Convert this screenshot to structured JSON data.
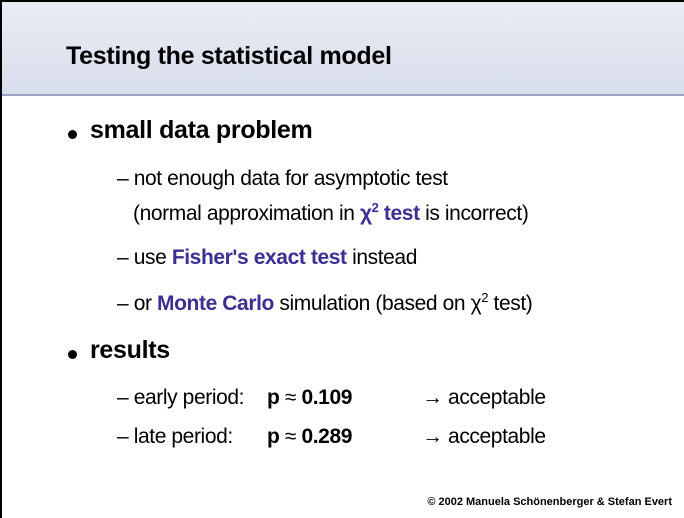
{
  "header": {
    "title": "Testing the statistical model"
  },
  "bullets": [
    {
      "label": "small data problem",
      "subitems": [
        {
          "lines": [
            [
              "– not enough data for asymptotic test"
            ],
            [
              "(normal approximation in ",
              "χ",
              "2",
              " test",
              " is incorrect)"
            ]
          ]
        },
        {
          "lines": [
            [
              "– use ",
              "Fisher's exact test",
              " instead"
            ]
          ]
        },
        {
          "lines": [
            [
              "– or ",
              "Monte Carlo",
              " simulation (based on ",
              "χ",
              "2",
              " test)"
            ]
          ]
        }
      ]
    },
    {
      "label": "results",
      "subitems": [
        {
          "lines": [
            [
              "– early period:",
              "p",
              "≈",
              "0.109",
              "→",
              "acceptable"
            ]
          ]
        },
        {
          "lines": [
            [
              "– late period:",
              "p",
              "≈",
              "0.289",
              "→",
              "acceptable"
            ]
          ]
        }
      ]
    }
  ],
  "footer": "© 2002 Manuela Schönenberger & Stefan Evert"
}
